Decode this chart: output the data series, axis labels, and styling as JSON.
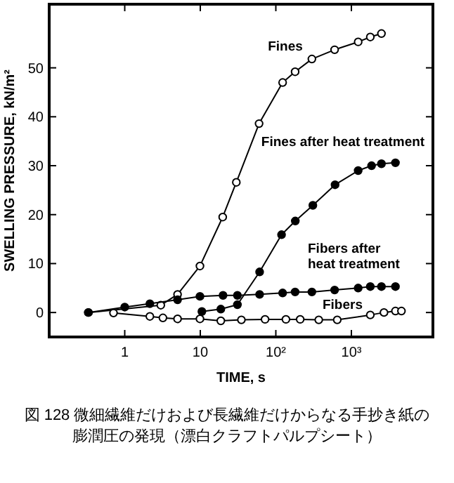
{
  "chart_data": {
    "type": "line",
    "xlabel": "TIME, s",
    "ylabel": "SWELLING PRESSURE, kN/m²",
    "log": "x",
    "xlim": [
      0.1,
      12000
    ],
    "ylim": [
      -5,
      63
    ],
    "xticks": [
      1,
      10,
      {
        "value": 100,
        "label": "10²"
      },
      {
        "value": 1000,
        "label": "10³"
      }
    ],
    "yticks": [
      0,
      10,
      20,
      30,
      40,
      50
    ],
    "marker": "circle",
    "line_style": "solid",
    "series": [
      {
        "name": "Fines",
        "color": "#000000",
        "x": [
          0.33,
          3,
          5,
          9.9,
          19.8,
          30,
          60,
          123,
          180,
          300,
          600,
          1230,
          1780,
          2500
        ],
        "values": [
          0,
          1.5,
          3.7,
          9.5,
          19.5,
          26.6,
          38.6,
          47,
          49.2,
          51.8,
          53.7,
          55.3,
          56.3,
          57
        ]
      },
      {
        "name": "Fines after heat treatment",
        "color": "#000000",
        "x": [
          10.5,
          18.7,
          31,
          61,
          119,
          181,
          309,
          608,
          1230,
          1850,
          2500,
          3830
        ],
        "values": [
          0.2,
          0.7,
          1.6,
          8.3,
          15.9,
          18.7,
          21.9,
          26.1,
          29,
          30,
          30.4,
          30.6
        ]
      },
      {
        "name": "Fibers after\nheat treatment",
        "color": "#000000",
        "x": [
          0.33,
          1,
          2.15,
          5,
          9.9,
          20,
          31,
          61,
          123,
          180,
          300,
          600,
          1230,
          1780,
          2500,
          3830
        ],
        "values": [
          0,
          1.1,
          1.8,
          2.6,
          3.3,
          3.5,
          3.5,
          3.7,
          4,
          4.2,
          4.2,
          4.6,
          5,
          5.3,
          5.3,
          5.3
        ]
      },
      {
        "name": "Fibers",
        "color": "#000000",
        "x": [
          0.71,
          2.15,
          3.2,
          5,
          9.9,
          18.7,
          35,
          72,
          136,
          210,
          370,
          650,
          1780,
          2700,
          3830,
          4600
        ],
        "values": [
          -0.1,
          -0.8,
          -1.1,
          -1.3,
          -1.3,
          -1.7,
          -1.5,
          -1.4,
          -1.4,
          -1.4,
          -1.5,
          -1.5,
          -0.5,
          0,
          0.3,
          0.3
        ]
      }
    ],
    "annotations": [
      "図 128 微細繊維だけおよび長繊維だけからなる手抄き紙の膨潤圧の発現（漂白クラフトパルプシート）"
    ]
  }
}
